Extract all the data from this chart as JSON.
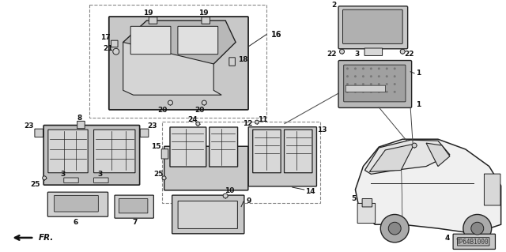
{
  "background_color": "#ffffff",
  "diagram_code": "TP64B1000",
  "fig_width": 6.4,
  "fig_height": 3.19,
  "dpi": 100,
  "line_color": "#222222",
  "text_color": "#111111",
  "gray_fill": "#d0d0d0",
  "light_gray": "#e8e8e8",
  "dark_gray": "#888888"
}
